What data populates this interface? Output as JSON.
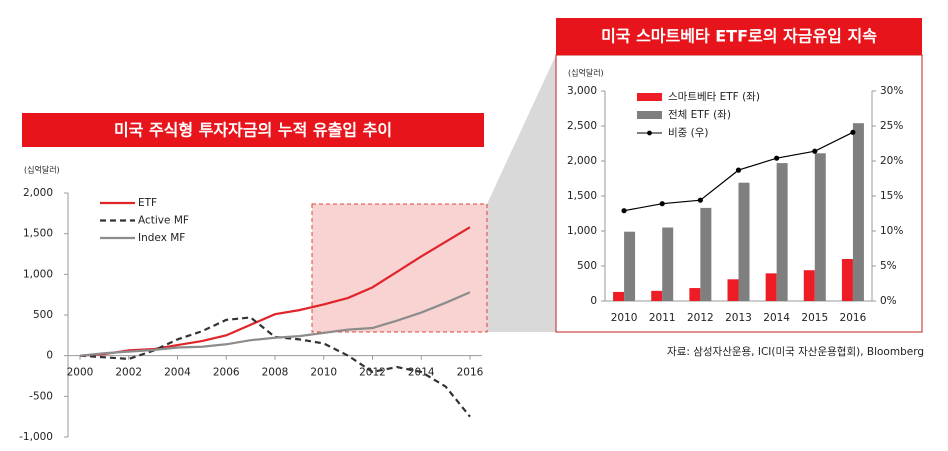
{
  "chart_data": [
    {
      "type": "line",
      "title": "미국 주식형 투자자금의 누적 유출입 추이",
      "y_label": "(십억달러)",
      "x": [
        2000,
        2001,
        2002,
        2003,
        2004,
        2005,
        2006,
        2007,
        2008,
        2009,
        2010,
        2011,
        2012,
        2013,
        2014,
        2015,
        2016
      ],
      "xlim": [
        2000,
        2016
      ],
      "xticks": [
        2000,
        2002,
        2004,
        2006,
        2008,
        2010,
        2012,
        2014,
        2016
      ],
      "ylim": [
        -1000,
        2000
      ],
      "yticks": [
        {
          "value": -1000,
          "label": "-1,000"
        },
        -500,
        0,
        500,
        {
          "value": 1000,
          "label": "1,000"
        },
        {
          "value": 1500,
          "label": "1,500"
        },
        {
          "value": 2000,
          "label": "2,000"
        }
      ],
      "series": [
        {
          "name": "ETF",
          "color": "#e0242a",
          "linestyle": "solid",
          "values": [
            0,
            20,
            65,
            80,
            130,
            180,
            250,
            380,
            510,
            560,
            630,
            710,
            840,
            1030,
            1220,
            1400,
            1580
          ]
        },
        {
          "name": "Active MF",
          "color": "#333333",
          "linestyle": "dashed",
          "values": [
            0,
            -20,
            -40,
            60,
            200,
            300,
            440,
            470,
            230,
            200,
            150,
            0,
            -200,
            -140,
            -200,
            -380,
            -750
          ]
        },
        {
          "name": "Index MF",
          "color": "#8c8c8c",
          "linestyle": "solid",
          "values": [
            0,
            30,
            50,
            70,
            100,
            110,
            140,
            190,
            220,
            240,
            280,
            320,
            340,
            430,
            530,
            650,
            780
          ]
        }
      ]
    },
    {
      "type": "bar",
      "title": "미국 스마트베타 ETF로의 자금유입 지속",
      "y_label": "(십억달러)",
      "categories": [
        "2010",
        "2011",
        "2012",
        "2013",
        "2014",
        "2015",
        "2016"
      ],
      "ylim": [
        0,
        3000
      ],
      "yticks": [
        0,
        500,
        {
          "value": 1000,
          "label": "1,000"
        },
        {
          "value": 1500,
          "label": "1,500"
        },
        {
          "value": 2000,
          "label": "2,000"
        },
        {
          "value": 2500,
          "label": "2,500"
        },
        {
          "value": 3000,
          "label": "3,000"
        }
      ],
      "y2lim": [
        0,
        30
      ],
      "y2ticks": [
        {
          "value": 0,
          "label": "0%"
        },
        {
          "value": 5,
          "label": "5%"
        },
        {
          "value": 10,
          "label": "10%"
        },
        {
          "value": 15,
          "label": "15%"
        },
        {
          "value": 20,
          "label": "20%"
        },
        {
          "value": 25,
          "label": "25%"
        },
        {
          "value": 30,
          "label": "30%"
        }
      ],
      "series": [
        {
          "name": "스마트베타 ETF (좌)",
          "color": "#ee1c25",
          "values": [
            130,
            145,
            185,
            310,
            395,
            440,
            600
          ]
        },
        {
          "name": "전체 ETF (좌)",
          "color": "#7f7f7f",
          "values": [
            990,
            1050,
            1330,
            1690,
            1970,
            2110,
            2540
          ]
        },
        {
          "name": "비중 (우)",
          "type": "line",
          "axis": "y2",
          "color": "#000000",
          "values": [
            12.9,
            13.9,
            14.4,
            18.7,
            20.4,
            21.4,
            24.1
          ]
        }
      ]
    }
  ],
  "source": "자료: 삼성자산운용, ICI(미국 자산운용협회), Bloomberg"
}
